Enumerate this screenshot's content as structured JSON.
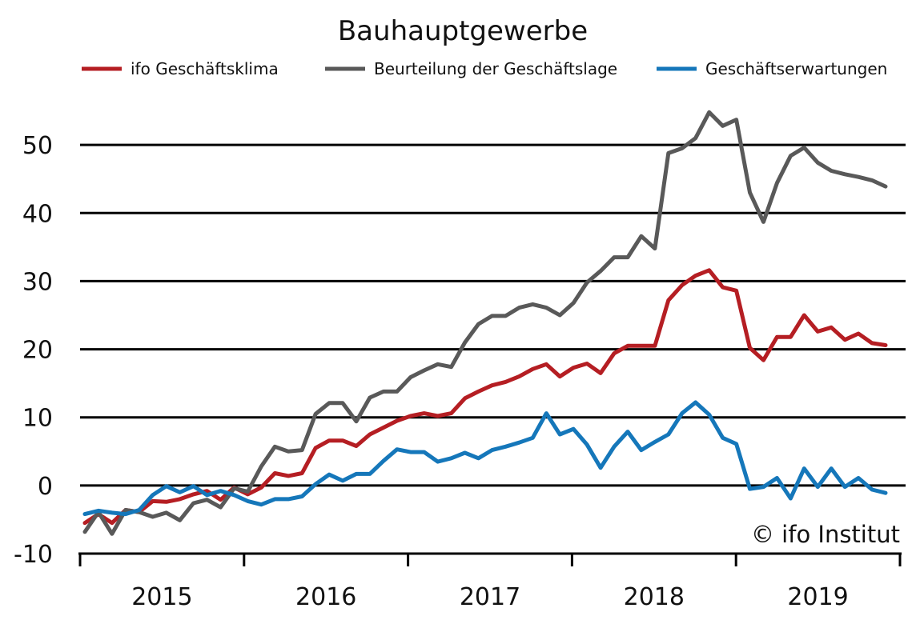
{
  "chart_data": {
    "type": "line",
    "title": "Bauhauptgewerbe",
    "xlabel": "",
    "ylabel": "",
    "copyright": "© ifo Institut",
    "ylim": [
      -10,
      60
    ],
    "yticks": [
      -10,
      0,
      10,
      20,
      30,
      40,
      50
    ],
    "yticklabels": [
      "-10",
      "0",
      "10",
      "20",
      "30",
      "40",
      "50"
    ],
    "xlim": [
      2015.0,
      2020.0
    ],
    "xticklabels": [
      "2015",
      "2016",
      "2017",
      "2018",
      "2019"
    ],
    "grid": "horizontal",
    "legend_position": "top",
    "x_start": "2015-01",
    "x_step": "month",
    "series": [
      {
        "name": "ifo Geschäftsklima",
        "color": "#b51e23",
        "values": [
          -5.5,
          -4.2,
          -5.5,
          -3.6,
          -3.9,
          -2.3,
          -2.4,
          -2.0,
          -1.3,
          -0.8,
          -2.1,
          -0.3,
          -1.3,
          -0.3,
          1.8,
          1.4,
          1.8,
          5.5,
          6.6,
          6.6,
          5.8,
          7.5,
          8.5,
          9.5,
          10.2,
          10.6,
          10.2,
          10.6,
          12.8,
          13.8,
          14.7,
          15.2,
          16.0,
          17.1,
          17.8,
          16.0,
          17.3,
          17.9,
          16.5,
          19.4,
          20.5,
          20.5,
          20.5,
          27.2,
          29.4,
          30.8,
          31.6,
          29.1,
          28.6,
          20.2,
          18.4,
          21.8,
          21.8,
          25.0,
          22.6,
          23.2,
          21.4,
          22.3,
          20.9,
          20.6
        ]
      },
      {
        "name": "Beurteilung der Geschäftslage",
        "color": "#595959",
        "values": [
          -6.8,
          -3.9,
          -7.1,
          -3.6,
          -3.9,
          -4.6,
          -4.0,
          -5.1,
          -2.6,
          -2.1,
          -3.2,
          -0.4,
          -0.9,
          2.8,
          5.7,
          5.0,
          5.2,
          10.5,
          12.1,
          12.1,
          9.4,
          12.9,
          13.8,
          13.8,
          15.9,
          16.9,
          17.8,
          17.4,
          21.0,
          23.7,
          24.9,
          24.9,
          26.1,
          26.6,
          26.1,
          25.0,
          26.8,
          29.8,
          31.5,
          33.5,
          33.5,
          36.6,
          34.8,
          48.8,
          49.5,
          51.0,
          54.8,
          52.8,
          53.7,
          43.0,
          38.7,
          44.4,
          48.4,
          49.6,
          47.4,
          46.2,
          45.7,
          45.3,
          44.8,
          43.9
        ]
      },
      {
        "name": "Geschäftserwartungen",
        "color": "#1577ba",
        "values": [
          -4.2,
          -3.7,
          -4.0,
          -4.2,
          -3.6,
          -1.4,
          -0.1,
          -1.0,
          -0.1,
          -1.4,
          -0.8,
          -1.4,
          -2.3,
          -2.8,
          -2.0,
          -2.0,
          -1.6,
          0.2,
          1.6,
          0.7,
          1.7,
          1.7,
          3.6,
          5.3,
          4.9,
          4.9,
          3.5,
          4.0,
          4.8,
          4.0,
          5.2,
          5.7,
          6.3,
          7.0,
          10.6,
          7.5,
          8.3,
          6.0,
          2.6,
          5.7,
          7.9,
          5.2,
          6.4,
          7.5,
          10.6,
          12.2,
          10.4,
          7.0,
          6.1,
          -0.5,
          -0.2,
          1.1,
          -1.9,
          2.5,
          -0.2,
          2.5,
          -0.2,
          1.1,
          -0.6,
          -1.1
        ]
      }
    ]
  }
}
